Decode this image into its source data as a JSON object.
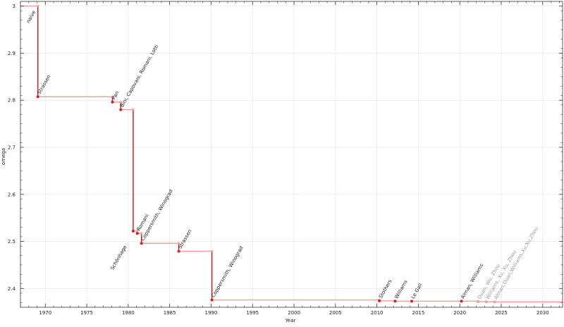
{
  "chart_data": {
    "type": "line",
    "style": "step",
    "xlabel": "Year",
    "ylabel": "omega",
    "xlim": [
      1967.0,
      2032.4
    ],
    "ylim": [
      2.36,
      3.01
    ],
    "xticks": [
      1970,
      1975,
      1980,
      1985,
      1990,
      1995,
      2000,
      2005,
      2010,
      2015,
      2020,
      2025,
      2030
    ],
    "yticks": [
      2.4,
      2.5,
      2.6,
      2.7,
      2.8,
      2.9,
      3
    ],
    "grid": true,
    "colors": {
      "drop": "#d42020",
      "level": "#f0a0a0",
      "label": "#222222",
      "label_recent": "#999999"
    },
    "points": [
      {
        "x": 1967.0,
        "y": 3.0,
        "label": "naive",
        "below": true
      },
      {
        "x": 1969.1,
        "y": 2.8074,
        "label": "Strassen"
      },
      {
        "x": 1978.1,
        "y": 2.796,
        "label": "Pan"
      },
      {
        "x": 1979.1,
        "y": 2.78,
        "label": "Bini, Capovani, Romani, Lotti"
      },
      {
        "x": 1980.6,
        "y": 2.522,
        "label": "Schönhage",
        "below": true
      },
      {
        "x": 1981.1,
        "y": 2.517,
        "label": "Romani"
      },
      {
        "x": 1981.6,
        "y": 2.496,
        "label": "Coppersmith, Winograd"
      },
      {
        "x": 1986.1,
        "y": 2.479,
        "label": "Strassen"
      },
      {
        "x": 1990.1,
        "y": 2.3755,
        "label": "Coppersmith, Winograd"
      },
      {
        "x": 2010.3,
        "y": 2.3737,
        "label": "Stothers"
      },
      {
        "x": 2012.2,
        "y": 2.3729,
        "label": "Williams"
      },
      {
        "x": 2014.2,
        "y": 2.37286,
        "label": "Le Gall"
      },
      {
        "x": 2020.2,
        "y": 2.37286,
        "label": "Alman, Williams"
      },
      {
        "x": 2022.2,
        "y": 2.37188,
        "label": "Duan, Wu, Zhou",
        "recent": true
      },
      {
        "x": 2023.2,
        "y": 2.37155,
        "label": "Williams, Xu, Xu, Zhou",
        "recent": true
      },
      {
        "x": 2024.2,
        "y": 2.37134,
        "label": "Alman,Duan,Williams,Xu,Xu,Zhou",
        "recent": true
      }
    ]
  }
}
